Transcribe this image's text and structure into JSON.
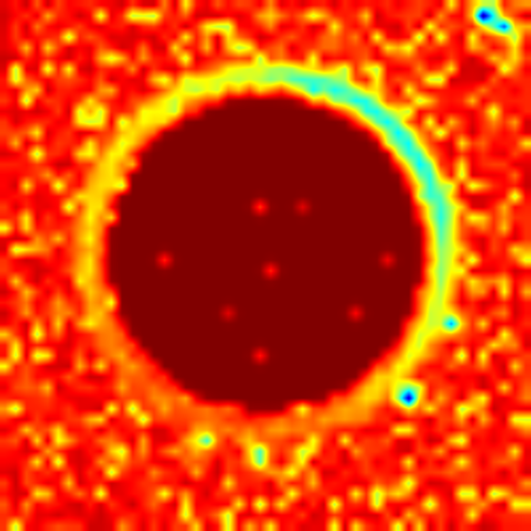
{
  "chart_data": {
    "type": "heatmap",
    "title": "",
    "xlabel": "",
    "ylabel": "",
    "colormap": "jet",
    "colors": {
      "background_high": "#7f0000",
      "ring_low": "#00a0ff",
      "min_spot": "#0000b0"
    },
    "grid_size": [
      50,
      50
    ],
    "value_range": [
      0,
      1
    ],
    "legend": "none",
    "grid": false,
    "interpolation": "smooth",
    "description_free_structure": {
      "ring": {
        "center": [
          24.5,
          23.3
        ],
        "radius": 16.8,
        "width": 1.25,
        "base_value": 0.62,
        "strong_arc_center_deg": 40,
        "strong_arc_value": 0.36,
        "weak_arc_center_deg": 250,
        "weak_arc_value": 0.78
      },
      "inside_value": 1.0,
      "outside_value": 0.93,
      "outside_noise": 0.12,
      "noise_seed": 7,
      "low_spots": [
        {
          "col": 45,
          "row": 1,
          "value": 0.02
        },
        {
          "col": 47,
          "row": 2,
          "value": 0.2
        },
        {
          "col": 38,
          "row": 37,
          "value": 0.05
        },
        {
          "col": 24,
          "row": 42.5,
          "value": 0.3
        },
        {
          "col": 19,
          "row": 41,
          "value": 0.42
        },
        {
          "col": 42,
          "row": 30,
          "value": 0.28
        },
        {
          "col": 29,
          "row": 8,
          "value": 0.38
        }
      ],
      "inner_spots": [
        {
          "col": 24,
          "row": 19,
          "value": 0.82
        },
        {
          "col": 15,
          "row": 24,
          "value": 0.84
        },
        {
          "col": 25,
          "row": 25,
          "value": 0.84
        },
        {
          "col": 24,
          "row": 33,
          "value": 0.85
        },
        {
          "col": 33,
          "row": 29,
          "value": 0.87
        },
        {
          "col": 36,
          "row": 24,
          "value": 0.88
        },
        {
          "col": 21,
          "row": 29,
          "value": 0.9
        },
        {
          "col": 28,
          "row": 19,
          "value": 0.9
        }
      ]
    }
  }
}
